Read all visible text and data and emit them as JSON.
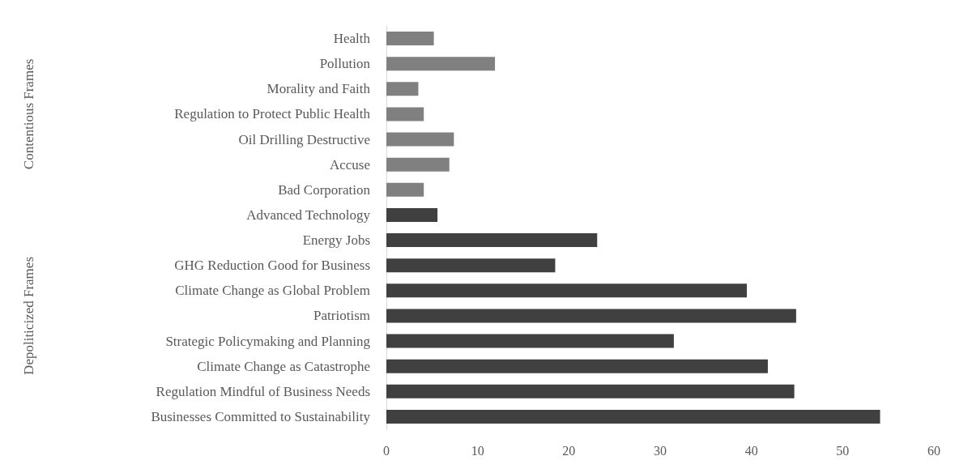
{
  "chart_data": {
    "type": "bar",
    "orientation": "horizontal",
    "categories": [
      "Health",
      "Pollution",
      "Morality and Faith",
      "Regulation to Protect Public Health",
      "Oil Drilling Destructive",
      "Accuse",
      "Bad Corporation",
      "Advanced Technology",
      "Energy Jobs",
      "GHG Reduction Good for Business",
      "Climate Change as Global Problem",
      "Patriotism",
      "Strategic Policymaking and Planning",
      "Climate Change as Catastrophe",
      "Regulation Mindful of Business Needs",
      "Businesses Committed to Sustainability"
    ],
    "values": [
      5.2,
      11.9,
      3.5,
      4.1,
      7.4,
      6.9,
      4.1,
      5.6,
      23.1,
      18.5,
      39.5,
      44.9,
      31.5,
      41.8,
      44.7,
      54.1
    ],
    "colors": [
      "#808080",
      "#808080",
      "#808080",
      "#808080",
      "#808080",
      "#808080",
      "#808080",
      "#404040",
      "#404040",
      "#404040",
      "#404040",
      "#404040",
      "#404040",
      "#404040",
      "#404040",
      "#404040"
    ],
    "xlim": [
      0,
      60
    ],
    "xticks": [
      0,
      10,
      20,
      30,
      40,
      50,
      60
    ],
    "grid": false,
    "annotations": [
      "Contentious Frames",
      "Depoliticized Frames"
    ]
  }
}
